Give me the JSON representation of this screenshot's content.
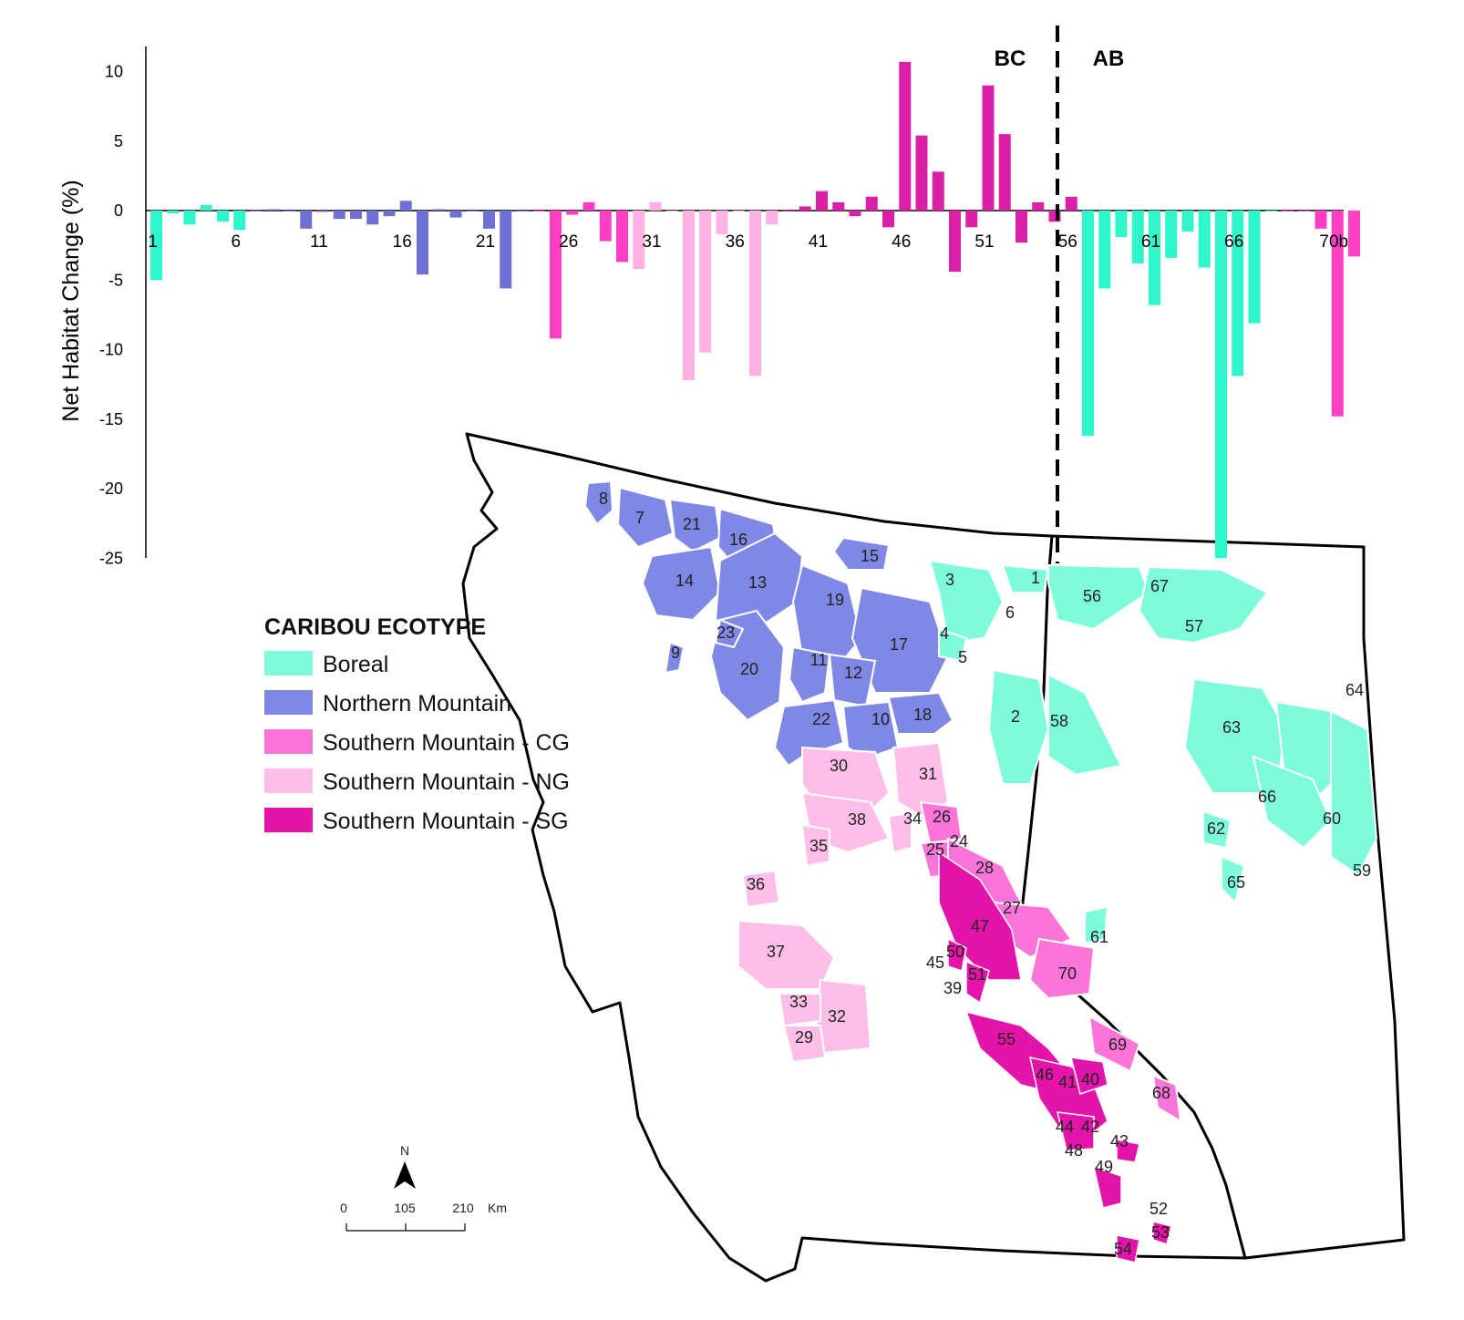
{
  "chart_data": {
    "type": "bar",
    "ylabel": "Net Habitat Change (%)",
    "ylim": [
      -25,
      12
    ],
    "yticks": [
      10,
      5,
      0,
      -5,
      -10,
      -15,
      -20,
      -25
    ],
    "tick_labels": [
      {
        "index": 1,
        "label": "1"
      },
      {
        "index": 6,
        "label": "6"
      },
      {
        "index": 11,
        "label": "11"
      },
      {
        "index": 16,
        "label": "16"
      },
      {
        "index": 21,
        "label": "21"
      },
      {
        "index": 26,
        "label": "26"
      },
      {
        "index": 31,
        "label": "31"
      },
      {
        "index": 36,
        "label": "36"
      },
      {
        "index": 41,
        "label": "41"
      },
      {
        "index": 46,
        "label": "46"
      },
      {
        "index": 51,
        "label": "51"
      },
      {
        "index": 56,
        "label": "56"
      },
      {
        "index": 61,
        "label": "61"
      },
      {
        "index": 66,
        "label": "66"
      },
      {
        "index": 72,
        "label": "70b"
      }
    ],
    "colors": {
      "Boreal": "#2ff5cb",
      "Northern Mountain": "#6f70d4",
      "Southern Mountain - CG": "#ff3fc3",
      "Southern Mountain - NG": "#ffb1e3",
      "Southern Mountain - SG": "#db1fa6"
    },
    "values": [
      {
        "i": 1,
        "v": -5.0,
        "e": "Boreal"
      },
      {
        "i": 2,
        "v": -0.2,
        "e": "Boreal"
      },
      {
        "i": 3,
        "v": -1.0,
        "e": "Boreal"
      },
      {
        "i": 4,
        "v": 0.4,
        "e": "Boreal"
      },
      {
        "i": 5,
        "v": -0.8,
        "e": "Boreal"
      },
      {
        "i": 6,
        "v": -1.4,
        "e": "Boreal"
      },
      {
        "i": 7,
        "v": 0.0,
        "e": "Northern Mountain"
      },
      {
        "i": 8,
        "v": 0.1,
        "e": "Northern Mountain"
      },
      {
        "i": 9,
        "v": 0.0,
        "e": "Northern Mountain"
      },
      {
        "i": 10,
        "v": -1.3,
        "e": "Northern Mountain"
      },
      {
        "i": 11,
        "v": -0.1,
        "e": "Northern Mountain"
      },
      {
        "i": 12,
        "v": -0.6,
        "e": "Northern Mountain"
      },
      {
        "i": 13,
        "v": -0.6,
        "e": "Northern Mountain"
      },
      {
        "i": 14,
        "v": -1.0,
        "e": "Northern Mountain"
      },
      {
        "i": 15,
        "v": -0.4,
        "e": "Northern Mountain"
      },
      {
        "i": 16,
        "v": 0.7,
        "e": "Northern Mountain"
      },
      {
        "i": 17,
        "v": -4.6,
        "e": "Northern Mountain"
      },
      {
        "i": 18,
        "v": 0.1,
        "e": "Northern Mountain"
      },
      {
        "i": 19,
        "v": -0.5,
        "e": "Northern Mountain"
      },
      {
        "i": 20,
        "v": 0.0,
        "e": "Northern Mountain"
      },
      {
        "i": 21,
        "v": -1.3,
        "e": "Northern Mountain"
      },
      {
        "i": 22,
        "v": -5.6,
        "e": "Northern Mountain"
      },
      {
        "i": 23,
        "v": 0.0,
        "e": "Northern Mountain"
      },
      {
        "i": 24,
        "v": 0.0,
        "e": "Southern Mountain - CG"
      },
      {
        "i": 25,
        "v": -9.2,
        "e": "Southern Mountain - CG"
      },
      {
        "i": 26,
        "v": -0.3,
        "e": "Southern Mountain - CG"
      },
      {
        "i": 27,
        "v": 0.6,
        "e": "Southern Mountain - CG"
      },
      {
        "i": 28,
        "v": -2.2,
        "e": "Southern Mountain - CG"
      },
      {
        "i": 29,
        "v": -3.7,
        "e": "Southern Mountain - CG"
      },
      {
        "i": 30,
        "v": -4.2,
        "e": "Southern Mountain - NG"
      },
      {
        "i": 31,
        "v": 0.6,
        "e": "Southern Mountain - NG"
      },
      {
        "i": 32,
        "v": 0.0,
        "e": "Southern Mountain - NG"
      },
      {
        "i": 33,
        "v": -12.2,
        "e": "Southern Mountain - NG"
      },
      {
        "i": 34,
        "v": -10.2,
        "e": "Southern Mountain - NG"
      },
      {
        "i": 35,
        "v": -1.7,
        "e": "Southern Mountain - NG"
      },
      {
        "i": 36,
        "v": 0.0,
        "e": "Southern Mountain - NG"
      },
      {
        "i": 37,
        "v": -11.9,
        "e": "Southern Mountain - NG"
      },
      {
        "i": 38,
        "v": -1.0,
        "e": "Southern Mountain - NG"
      },
      {
        "i": 39,
        "v": 0.0,
        "e": "Southern Mountain - SG"
      },
      {
        "i": 40,
        "v": 0.3,
        "e": "Southern Mountain - SG"
      },
      {
        "i": 41,
        "v": 1.4,
        "e": "Southern Mountain - SG"
      },
      {
        "i": 42,
        "v": 0.6,
        "e": "Southern Mountain - SG"
      },
      {
        "i": 43,
        "v": -0.4,
        "e": "Southern Mountain - SG"
      },
      {
        "i": 44,
        "v": 1.0,
        "e": "Southern Mountain - SG"
      },
      {
        "i": 45,
        "v": -1.2,
        "e": "Southern Mountain - SG"
      },
      {
        "i": 46,
        "v": 10.7,
        "e": "Southern Mountain - SG"
      },
      {
        "i": 47,
        "v": 5.4,
        "e": "Southern Mountain - SG"
      },
      {
        "i": 48,
        "v": 2.8,
        "e": "Southern Mountain - SG"
      },
      {
        "i": 49,
        "v": -4.4,
        "e": "Southern Mountain - SG"
      },
      {
        "i": 50,
        "v": -1.2,
        "e": "Southern Mountain - SG"
      },
      {
        "i": 51,
        "v": 9.0,
        "e": "Southern Mountain - SG"
      },
      {
        "i": 52,
        "v": 5.5,
        "e": "Southern Mountain - SG"
      },
      {
        "i": 53,
        "v": -2.3,
        "e": "Southern Mountain - SG"
      },
      {
        "i": 54,
        "v": 0.6,
        "e": "Southern Mountain - SG"
      },
      {
        "i": 55,
        "v": -0.8,
        "e": "Southern Mountain - SG"
      },
      {
        "i": 56,
        "v": 1.0,
        "e": "Southern Mountain - SG"
      },
      {
        "i": 57,
        "v": -16.2,
        "e": "Boreal"
      },
      {
        "i": 58,
        "v": -5.6,
        "e": "Boreal"
      },
      {
        "i": 59,
        "v": -1.9,
        "e": "Boreal"
      },
      {
        "i": 60,
        "v": -3.8,
        "e": "Boreal"
      },
      {
        "i": 61,
        "v": -6.8,
        "e": "Boreal"
      },
      {
        "i": 62,
        "v": -3.4,
        "e": "Boreal"
      },
      {
        "i": 63,
        "v": -1.5,
        "e": "Boreal"
      },
      {
        "i": 64,
        "v": -4.1,
        "e": "Boreal"
      },
      {
        "i": 65,
        "v": -25.0,
        "e": "Boreal"
      },
      {
        "i": 66,
        "v": -11.9,
        "e": "Boreal"
      },
      {
        "i": 67,
        "v": -8.1,
        "e": "Boreal"
      },
      {
        "i": 68,
        "v": 0.0,
        "e": "Boreal"
      },
      {
        "i": 69,
        "v": 0.0,
        "e": "Southern Mountain - CG"
      },
      {
        "i": 70,
        "v": 0.0,
        "e": "Southern Mountain - CG"
      },
      {
        "i": 71,
        "v": -1.3,
        "e": "Southern Mountain - CG"
      },
      {
        "i": 72,
        "v": -14.8,
        "e": "Southern Mountain - CG"
      },
      {
        "i": 73,
        "v": -3.3,
        "e": "Southern Mountain - CG"
      }
    ]
  },
  "provinces": {
    "left": "BC",
    "right": "AB"
  },
  "legend": {
    "title": "CARIBOU ECOTYPE",
    "items": [
      {
        "label": "Boreal",
        "color": "#7dfbdb"
      },
      {
        "label": "Northern Mountain",
        "color": "#7f88e4"
      },
      {
        "label": "Southern Mountain - CG",
        "color": "#fb74d8"
      },
      {
        "label": "Southern Mountain - NG",
        "color": "#fdbfe7"
      },
      {
        "label": "Southern Mountain - SG",
        "color": "#e413a9"
      }
    ]
  },
  "map": {
    "herds": [
      "1",
      "2",
      "3",
      "4",
      "5",
      "6",
      "7",
      "8",
      "9",
      "10",
      "11",
      "12",
      "13",
      "14",
      "15",
      "16",
      "17",
      "18",
      "19",
      "20",
      "21",
      "22",
      "23",
      "24",
      "25",
      "26",
      "27",
      "28",
      "29",
      "30",
      "31",
      "32",
      "33",
      "34",
      "35",
      "36",
      "37",
      "38",
      "39",
      "40",
      "41",
      "42",
      "43",
      "44",
      "45",
      "46",
      "47",
      "48",
      "49",
      "50",
      "51",
      "52",
      "53",
      "54",
      "55",
      "56",
      "57",
      "58",
      "59",
      "60",
      "61",
      "62",
      "63",
      "64",
      "65",
      "66",
      "67",
      "68",
      "69",
      "70"
    ],
    "north_symbol": "N",
    "scale": {
      "labels": [
        "0",
        "105",
        "210"
      ],
      "unit": "Km"
    }
  }
}
